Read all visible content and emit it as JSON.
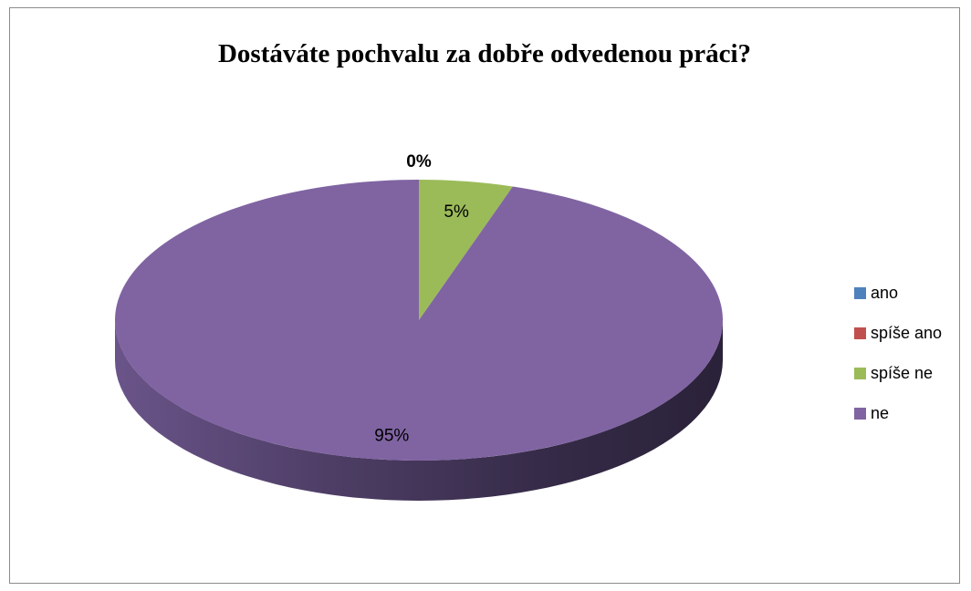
{
  "chart_data": {
    "type": "pie",
    "style": "3d",
    "title": "Dostáváte pochvalu za dobře odvedenou práci?",
    "categories": [
      "ano",
      "spíše ano",
      "spíše ne",
      "ne"
    ],
    "values": [
      0,
      0,
      5,
      95
    ],
    "data_labels": [
      "0%",
      "",
      "5%",
      "95%"
    ],
    "colors": [
      "#4f81bd",
      "#c0504d",
      "#9bbb59",
      "#8064a2"
    ],
    "legend_position": "right"
  }
}
